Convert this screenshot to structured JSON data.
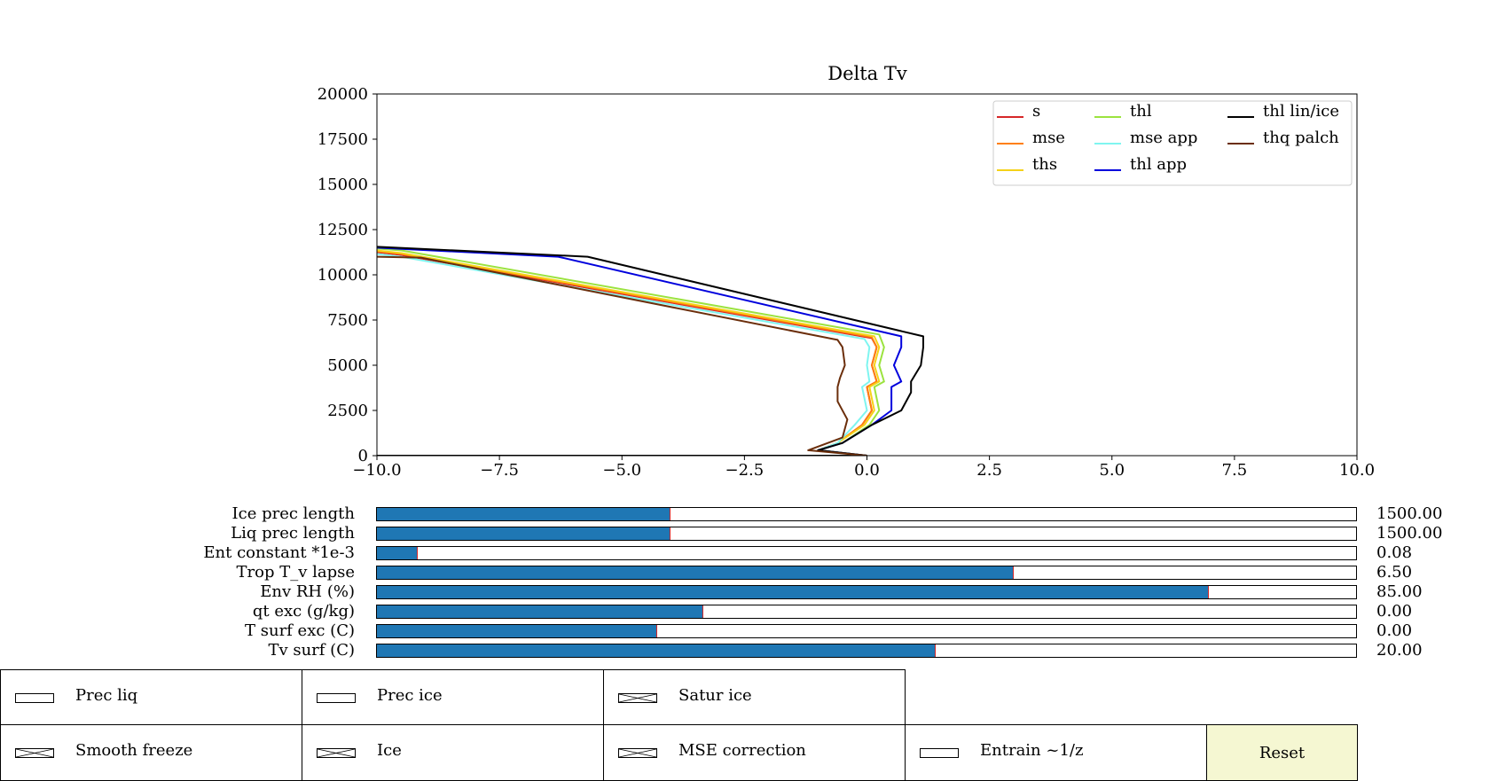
{
  "chart_data": {
    "type": "line",
    "title": "Delta Tv",
    "xlabel": "",
    "ylabel": "",
    "xlim": [
      -10,
      10
    ],
    "ylim": [
      0,
      20000
    ],
    "xticks": [
      -10,
      -7.5,
      -5,
      -2.5,
      0,
      2.5,
      5,
      7.5,
      10
    ],
    "xtick_labels": [
      "−10.0",
      "−7.5",
      "−5.0",
      "−2.5",
      "0.0",
      "2.5",
      "5.0",
      "7.5",
      "10.0"
    ],
    "yticks": [
      0,
      2500,
      5000,
      7500,
      10000,
      12500,
      15000,
      17500,
      20000
    ],
    "ytick_labels": [
      "0",
      "2500",
      "5000",
      "7500",
      "10000",
      "12500",
      "15000",
      "17500",
      "20000"
    ],
    "grid": false,
    "legend_position": "top-right",
    "series": [
      {
        "name": "s",
        "color": "#d62728",
        "x": [
          0.0,
          -1.0,
          -0.6,
          -0.1,
          0.1,
          0.0,
          0.2,
          0.1,
          0.2,
          0.1,
          -9.5,
          -10.0
        ],
        "y": [
          0,
          300,
          700,
          1700,
          2500,
          3800,
          4100,
          5000,
          6000,
          6500,
          11100,
          11250
        ]
      },
      {
        "name": "mse",
        "color": "#ff7f0e",
        "x": [
          0.0,
          -1.0,
          -0.6,
          -0.1,
          0.1,
          0.0,
          0.2,
          0.1,
          0.2,
          0.1,
          -9.5,
          -10.0
        ],
        "y": [
          0,
          300,
          700,
          1700,
          2500,
          3800,
          4100,
          5000,
          6000,
          6550,
          11150,
          11300
        ]
      },
      {
        "name": "ths",
        "color": "#f5d218",
        "x": [
          0.0,
          -1.0,
          -0.6,
          -0.05,
          0.15,
          0.05,
          0.25,
          0.15,
          0.25,
          0.15,
          -9.5,
          -10.0
        ],
        "y": [
          0,
          300,
          700,
          1700,
          2500,
          3800,
          4100,
          5000,
          6000,
          6600,
          11200,
          11350
        ]
      },
      {
        "name": "thl",
        "color": "#9be33f",
        "x": [
          0.0,
          -1.0,
          -0.5,
          0.05,
          0.25,
          0.15,
          0.35,
          0.25,
          0.35,
          0.25,
          -9.5,
          -10.0
        ],
        "y": [
          0,
          300,
          700,
          1700,
          2500,
          3800,
          4100,
          5000,
          6000,
          6700,
          11350,
          11450
        ]
      },
      {
        "name": "mse app",
        "color": "#7ff5f0",
        "x": [
          0.0,
          -1.0,
          -0.6,
          -0.25,
          0.0,
          -0.1,
          0.05,
          0.0,
          0.05,
          -0.05,
          -9.5,
          -10.0
        ],
        "y": [
          0,
          300,
          700,
          1700,
          2500,
          3800,
          4100,
          5000,
          6000,
          6450,
          11000,
          11150
        ]
      },
      {
        "name": "thl app",
        "color": "#0000dd",
        "x": [
          0.0,
          -1.0,
          -0.5,
          0.1,
          0.5,
          0.5,
          0.7,
          0.55,
          0.7,
          0.7,
          -6.3,
          -10.0
        ],
        "y": [
          0,
          300,
          700,
          1700,
          2500,
          3800,
          4100,
          5000,
          6000,
          6600,
          11000,
          11500
        ]
      },
      {
        "name": "thl lin/ice",
        "color": "#000000",
        "x": [
          0.0,
          -1.0,
          -0.5,
          0.1,
          0.7,
          0.9,
          0.9,
          1.1,
          1.15,
          1.15,
          -5.7,
          -10.0
        ],
        "y": [
          0,
          300,
          700,
          1700,
          2500,
          3500,
          4100,
          5000,
          6000,
          6600,
          11000,
          11550
        ]
      },
      {
        "name": "thq palch",
        "color": "#6b2e0b",
        "x": [
          0.0,
          -1.2,
          -0.5,
          -0.4,
          -0.6,
          -0.6,
          -0.55,
          -0.45,
          -0.5,
          -0.6,
          -9.1,
          -10.0
        ],
        "y": [
          0,
          300,
          1000,
          2000,
          3000,
          3800,
          4300,
          5000,
          6000,
          6400,
          10950,
          11000
        ]
      }
    ],
    "extra_lines": [
      {
        "color": "#000000",
        "x": [
          -10,
          0
        ],
        "y": [
          0,
          0
        ]
      }
    ]
  },
  "sliders": [
    {
      "label": "Ice prec length",
      "value": "1500.00",
      "fraction": 0.3
    },
    {
      "label": "Liq prec length",
      "value": "1500.00",
      "fraction": 0.3
    },
    {
      "label": "Ent constant *1e-3",
      "value": "0.08",
      "fraction": 0.042
    },
    {
      "label": "Trop T_v lapse",
      "value": "6.50",
      "fraction": 0.65
    },
    {
      "label": "Env RH (%)",
      "value": "85.00",
      "fraction": 0.85
    },
    {
      "label": "qt exc (g/kg)",
      "value": "0.00",
      "fraction": 0.333
    },
    {
      "label": "T  surf exc (C)",
      "value": "0.00",
      "fraction": 0.286
    },
    {
      "label": "Tv  surf (C)",
      "value": "20.00",
      "fraction": 0.571
    }
  ],
  "checkboxes": [
    {
      "label": "Prec liq",
      "checked": false
    },
    {
      "label": "Prec ice",
      "checked": false
    },
    {
      "label": "Satur ice",
      "checked": true
    },
    {
      "label": "Smooth freeze",
      "checked": true
    },
    {
      "label": "Ice",
      "checked": true
    },
    {
      "label": "MSE correction",
      "checked": true
    },
    {
      "label": "Entrain ~1/z",
      "checked": false
    }
  ],
  "reset_button": {
    "label": "Reset",
    "color": "#f5f7d2"
  }
}
